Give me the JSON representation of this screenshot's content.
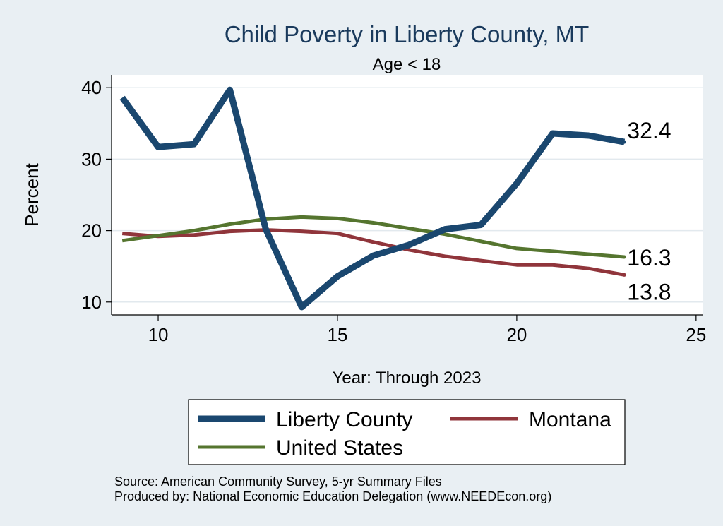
{
  "chart_data": {
    "type": "line",
    "title": "Child Poverty in Liberty County, MT",
    "subtitle": "Age < 18",
    "xlabel": "Year: Through 2023",
    "ylabel": "Percent",
    "xlim": [
      8.7,
      25.2
    ],
    "ylim": [
      8.2,
      41.8
    ],
    "xticks": [
      10,
      15,
      20,
      25
    ],
    "yticks": [
      10,
      20,
      30,
      40
    ],
    "tick_labels_x": [
      "10",
      "15",
      "20",
      "25"
    ],
    "tick_labels_y": [
      "10",
      "20",
      "30",
      "40"
    ],
    "grid": true,
    "legend_position": "bottom",
    "series": [
      {
        "name": "Liberty County",
        "color": "#1a476f",
        "width": "thick",
        "x": [
          9,
          10,
          11,
          12,
          13,
          14,
          15,
          16,
          17,
          18,
          19,
          20,
          21,
          22,
          23
        ],
        "values": [
          38.6,
          31.7,
          32.1,
          39.7,
          20.2,
          9.3,
          13.6,
          16.5,
          18.0,
          20.2,
          20.8,
          26.6,
          33.6,
          33.3,
          32.4
        ],
        "end_label": "32.4"
      },
      {
        "name": "Montana",
        "color": "#90353b",
        "width": "medium",
        "x": [
          9,
          10,
          11,
          12,
          13,
          14,
          15,
          16,
          17,
          18,
          19,
          20,
          21,
          22,
          23
        ],
        "values": [
          19.6,
          19.2,
          19.4,
          19.9,
          20.1,
          19.9,
          19.6,
          18.4,
          17.3,
          16.4,
          15.8,
          15.2,
          15.2,
          14.7,
          13.8
        ],
        "end_label": "13.8"
      },
      {
        "name": "United States",
        "color": "#55752f",
        "width": "medium",
        "x": [
          9,
          10,
          11,
          12,
          13,
          14,
          15,
          16,
          17,
          18,
          19,
          20,
          21,
          22,
          23
        ],
        "values": [
          18.6,
          19.3,
          20.0,
          20.9,
          21.6,
          21.9,
          21.7,
          21.1,
          20.3,
          19.5,
          18.5,
          17.5,
          17.1,
          16.7,
          16.3
        ],
        "end_label": "16.3"
      }
    ],
    "legend_items": [
      "Liberty County",
      "Montana",
      "United States"
    ]
  },
  "notes": {
    "source": "Source: American Community Survey, 5-yr Summary Files",
    "producer": "Produced by: National Economic Education Delegation (www.NEEDEcon.org)"
  }
}
